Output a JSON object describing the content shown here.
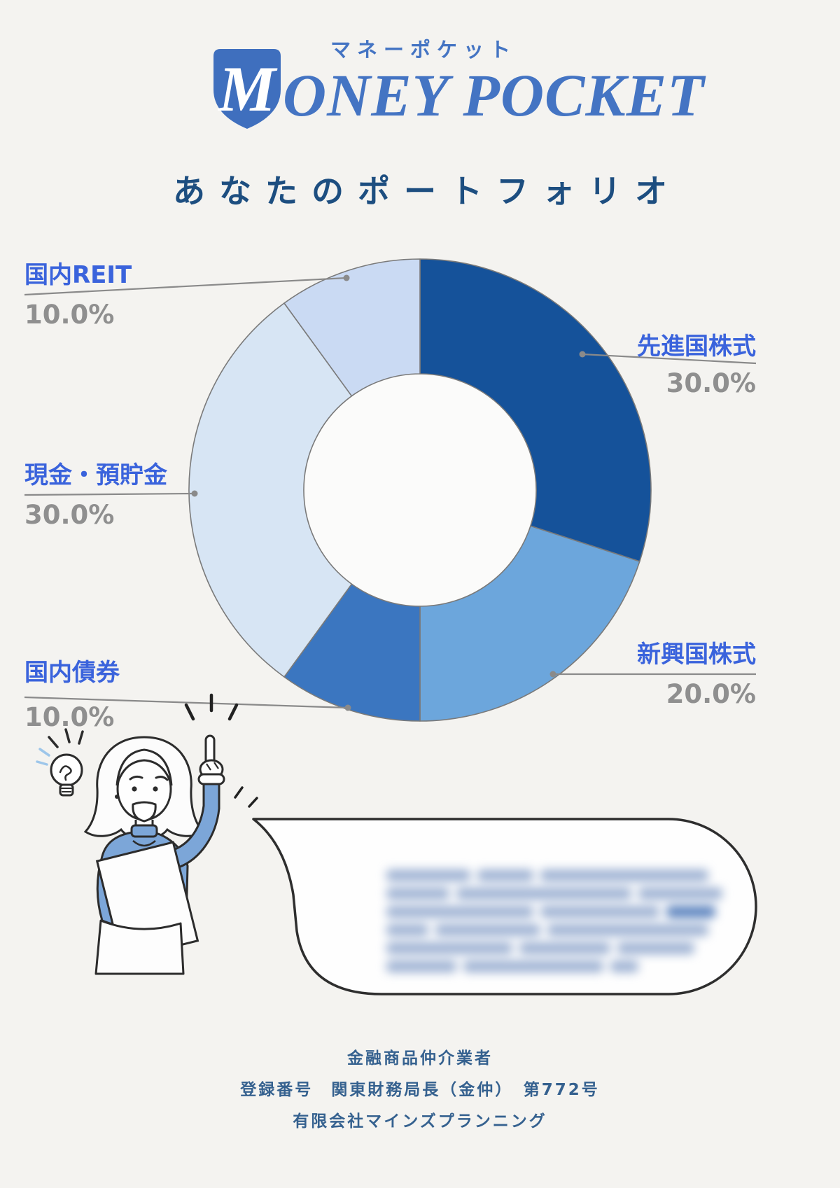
{
  "page": {
    "background": "#f4f3f0"
  },
  "logo": {
    "monogram": "M",
    "wordmark": "ONEY POCKET",
    "katakana": "マネーポケット",
    "color": "#4474c3",
    "shield_color": "#3f6fbe"
  },
  "title": "あなたのポートフォリオ",
  "chart_data": {
    "type": "pie",
    "donut": true,
    "title": "あなたのポートフォリオ",
    "start_angle_deg": 0,
    "direction": "clockwise",
    "legend_position": "callout-labels",
    "segments": [
      {
        "label": "先進国株式",
        "value": 30.0,
        "percent_label": "30.0%",
        "color": "#15529a",
        "side": "right"
      },
      {
        "label": "新興国株式",
        "value": 20.0,
        "percent_label": "20.0%",
        "color": "#6ca6dc",
        "side": "right"
      },
      {
        "label": "国内債券",
        "value": 10.0,
        "percent_label": "10.0%",
        "color": "#3b76c0",
        "side": "left"
      },
      {
        "label": "現金・預貯金",
        "value": 30.0,
        "percent_label": "30.0%",
        "color": "#d7e5f4",
        "side": "left"
      },
      {
        "label": "国内REIT",
        "value": 10.0,
        "percent_label": "10.0%",
        "color": "#cadaf3",
        "side": "left"
      }
    ],
    "label_color": "#3a63dc",
    "percent_color": "#8f8f8f",
    "outline_color": "#7a7a7a",
    "leader_line_color": "#8a8a8a",
    "hole_color": "#fbfbfa"
  },
  "speech_bubble": {
    "state": "blurred-text"
  },
  "footer": {
    "lines": [
      "金融商品仲介業者",
      "登録番号　関東財務局長（金仲）　第772号",
      "有限会社マインズプランニング"
    ],
    "color": "#35618f"
  }
}
